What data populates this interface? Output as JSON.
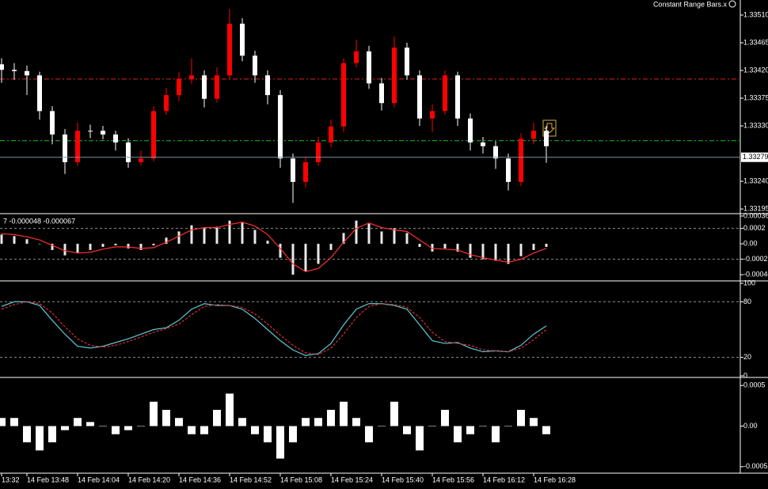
{
  "chart_data": [
    {
      "type": "candlestick",
      "title": "Constant Range Bars.x",
      "series": [
        {
          "style": "candle",
          "up_color": "#ff0000",
          "down_color": "#ffffff",
          "open": [
            1.3343,
            1.33421,
            1.33419,
            1.33412,
            1.33354,
            1.33316,
            1.33271,
            1.33322,
            1.33322,
            1.33316,
            1.33303,
            1.33271,
            1.33277,
            1.33354,
            1.3338,
            1.33406,
            1.33412,
            1.33374,
            1.33412,
            1.33496,
            1.33444,
            1.33412,
            1.3338,
            1.33277,
            1.33239,
            1.33271,
            1.33303,
            1.33329,
            1.33432,
            1.33451,
            1.33399,
            1.33367,
            1.33457,
            1.33412,
            1.33342,
            1.33354,
            1.33412,
            1.33342,
            1.33303,
            1.33297,
            1.33277,
            1.33239,
            1.33309,
            1.33322
          ],
          "high": [
            1.3344,
            1.33432,
            1.33428,
            1.33418,
            1.33362,
            1.33325,
            1.33335,
            1.33332,
            1.3333,
            1.33322,
            1.3331,
            1.3329,
            1.33362,
            1.33392,
            1.33418,
            1.3344,
            1.3342,
            1.33425,
            1.3352,
            1.33505,
            1.33452,
            1.3342,
            1.33388,
            1.33285,
            1.3328,
            1.33312,
            1.3334,
            1.3344,
            1.3347,
            1.3346,
            1.33408,
            1.33475,
            1.33465,
            1.3342,
            1.33365,
            1.3342,
            1.33418,
            1.3335,
            1.33312,
            1.33305,
            1.33285,
            1.33318,
            1.33335,
            1.3333
          ],
          "low": [
            1.334,
            1.33405,
            1.3338,
            1.3334,
            1.333,
            1.33252,
            1.33265,
            1.3331,
            1.33308,
            1.3329,
            1.33262,
            1.33265,
            1.33272,
            1.33348,
            1.3337,
            1.33398,
            1.3336,
            1.33368,
            1.33405,
            1.33435,
            1.334,
            1.33365,
            1.33262,
            1.33205,
            1.3323,
            1.33265,
            1.33295,
            1.3332,
            1.33425,
            1.3339,
            1.33355,
            1.3336,
            1.33405,
            1.3333,
            1.3332,
            1.33348,
            1.3333,
            1.3329,
            1.33285,
            1.3326,
            1.33225,
            1.33232,
            1.333,
            1.3327
          ],
          "close": [
            1.33421,
            1.33419,
            1.33412,
            1.33354,
            1.33316,
            1.33271,
            1.33322,
            1.33322,
            1.33316,
            1.33303,
            1.33271,
            1.33277,
            1.33354,
            1.3338,
            1.33406,
            1.33412,
            1.33374,
            1.33412,
            1.33496,
            1.33444,
            1.33412,
            1.3338,
            1.33277,
            1.33239,
            1.33271,
            1.33303,
            1.33329,
            1.33432,
            1.33451,
            1.33399,
            1.33367,
            1.33457,
            1.33412,
            1.33342,
            1.33354,
            1.33412,
            1.33342,
            1.33303,
            1.33297,
            1.33277,
            1.33239,
            1.33309,
            1.33322,
            1.33297
          ]
        }
      ],
      "levels": [
        {
          "value": 1.33406,
          "color": "#e02020",
          "dash": "6 3 2 3"
        },
        {
          "value": 1.33306,
          "color": "#20c020",
          "dash": "6 3 2 3"
        }
      ],
      "current_price": {
        "value": 1.33279,
        "label": "1.33279",
        "color": "#8090a0"
      },
      "ylim": [
        1.3319,
        1.33528
      ],
      "yticks": [
        {
          "value": 1.3351,
          "label": "1.33510"
        },
        {
          "value": 1.33465,
          "label": "1.33465"
        },
        {
          "value": 1.3342,
          "label": "1.33420"
        },
        {
          "value": 1.33375,
          "label": "1.33375"
        },
        {
          "value": 1.3333,
          "label": "1.33330"
        },
        {
          "value": 1.3324,
          "label": "1.33240"
        },
        {
          "value": 1.33195,
          "label": "1.33195"
        }
      ]
    },
    {
      "type": "macd",
      "title": "7 -0.000048 -0.000067",
      "series": [
        {
          "style": "bar",
          "color": "#e8e8e8",
          "values": [
            0.00012,
            0.0001,
            6e-05,
            0,
            -8e-05,
            -0.00015,
            -0.00012,
            -8e-05,
            -4e-05,
            -2e-05,
            -6e-05,
            -8e-05,
            -2e-05,
            8e-05,
            0.00016,
            0.00024,
            0.0002,
            0.00022,
            0.0003,
            0.00028,
            0.00018,
            4e-05,
            -0.00018,
            -0.0004,
            -0.00036,
            -0.00026,
            -8e-05,
            0.00014,
            0.0003,
            0.00026,
            0.00016,
            0.0002,
            0.00014,
            -4e-05,
            -0.0001,
            -6e-05,
            -0.0001,
            -0.00018,
            -0.0002,
            -0.00022,
            -0.00026,
            -0.00016,
            -8e-05,
            -4e-05
          ]
        },
        {
          "style": "line",
          "color": "#ff3030",
          "values": [
            0.00013,
            0.00012,
            9e-05,
            5e-05,
            -2e-05,
            -9e-05,
            -0.00012,
            -0.00011,
            -7e-05,
            -4e-05,
            -4e-05,
            -6e-05,
            -5e-05,
            2e-05,
            0.0001,
            0.00018,
            0.00021,
            0.00021,
            0.00025,
            0.00028,
            0.00023,
            0.00012,
            -6e-05,
            -0.00026,
            -0.00036,
            -0.00032,
            -0.00018,
            2e-05,
            0.0002,
            0.00027,
            0.00021,
            0.00018,
            0.00016,
            5e-05,
            -6e-05,
            -7e-05,
            -8e-05,
            -0.00014,
            -0.00018,
            -0.00021,
            -0.00024,
            -0.0002,
            -0.00012,
            -6e-05
          ]
        }
      ],
      "levels": [
        {
          "value": 0.0002,
          "color": "#909090",
          "dash": "3 3"
        },
        {
          "value": -0.0002,
          "color": "#909090",
          "dash": "3 3"
        }
      ],
      "ylim": [
        -0.00046,
        0.00037
      ],
      "yticks": [
        0.00036,
        0.0002,
        {
          "value": 0,
          "label": "0.00"
        },
        -0.0002,
        {
          "value": -0.0004,
          "label": "-0.00040"
        }
      ]
    },
    {
      "type": "line",
      "series": [
        {
          "style": "line",
          "color": "#5fc8d8",
          "values": [
            75,
            80,
            80,
            76,
            60,
            45,
            32,
            30,
            32,
            36,
            40,
            45,
            50,
            52,
            60,
            72,
            78,
            76,
            76,
            72,
            62,
            50,
            38,
            28,
            22,
            24,
            35,
            55,
            72,
            78,
            78,
            76,
            72,
            55,
            38,
            35,
            36,
            30,
            26,
            27,
            26,
            33,
            45,
            54
          ]
        },
        {
          "style": "dashed",
          "color": "#e03030",
          "values": [
            72,
            77,
            80,
            78,
            68,
            53,
            40,
            33,
            31,
            33,
            37,
            42,
            47,
            51,
            56,
            66,
            75,
            77,
            76,
            74,
            67,
            56,
            44,
            33,
            25,
            23,
            30,
            45,
            63,
            75,
            78,
            77,
            74,
            63,
            47,
            37,
            35,
            33,
            28,
            27,
            26,
            30,
            39,
            50
          ]
        }
      ],
      "levels": [
        {
          "value": 80,
          "color": "#909090",
          "dash": "3 3"
        },
        {
          "value": 20,
          "color": "#909090",
          "dash": "3 3"
        }
      ],
      "ylim": [
        0,
        100
      ],
      "yticks": [
        100,
        80,
        20,
        0
      ]
    },
    {
      "type": "bar",
      "categories": [
        "13:32",
        null,
        "14 Feb 13:48",
        null,
        null,
        null,
        "14 Feb 14:04",
        null,
        null,
        null,
        "14 Feb 14:20",
        null,
        null,
        null,
        "14 Feb 14:36",
        null,
        null,
        null,
        "14 Feb 14:52",
        null,
        null,
        null,
        "14 Feb 15:08",
        null,
        null,
        null,
        "14 Feb 15:24",
        null,
        null,
        null,
        "14 Feb 15:40",
        null,
        null,
        null,
        "14 Feb 15:56",
        null,
        null,
        null,
        "14 Feb 16:12",
        null,
        null,
        null,
        "14 Feb 16:28",
        null
      ],
      "series": [
        {
          "style": "bar",
          "color": "#ffffff",
          "values": [
            0.0001,
            0.0001,
            -0.0002,
            -0.0003,
            -0.0002,
            -5e-05,
            0.0001,
            5e-05,
            0,
            -0.0001,
            -5e-05,
            0,
            0.0003,
            0.0002,
            0.0001,
            -0.0001,
            -0.0001,
            0.0002,
            0.0004,
            0.0001,
            -0.0001,
            -0.0002,
            -0.0004,
            -0.0002,
            0.0001,
            0.0001,
            0.0002,
            0.0003,
            0.0001,
            -0.0002,
            0,
            0.0003,
            -0.0001,
            -0.0003,
            0,
            0.0002,
            -0.0002,
            -0.0001,
            0,
            -0.0002,
            0,
            0.0002,
            0.0001,
            -0.0001
          ]
        }
      ],
      "ylim": [
        -0.00058,
        0.00057
      ],
      "yticks": [
        0.0005,
        {
          "value": 0,
          "label": "0.00"
        },
        -0.0005
      ]
    }
  ]
}
